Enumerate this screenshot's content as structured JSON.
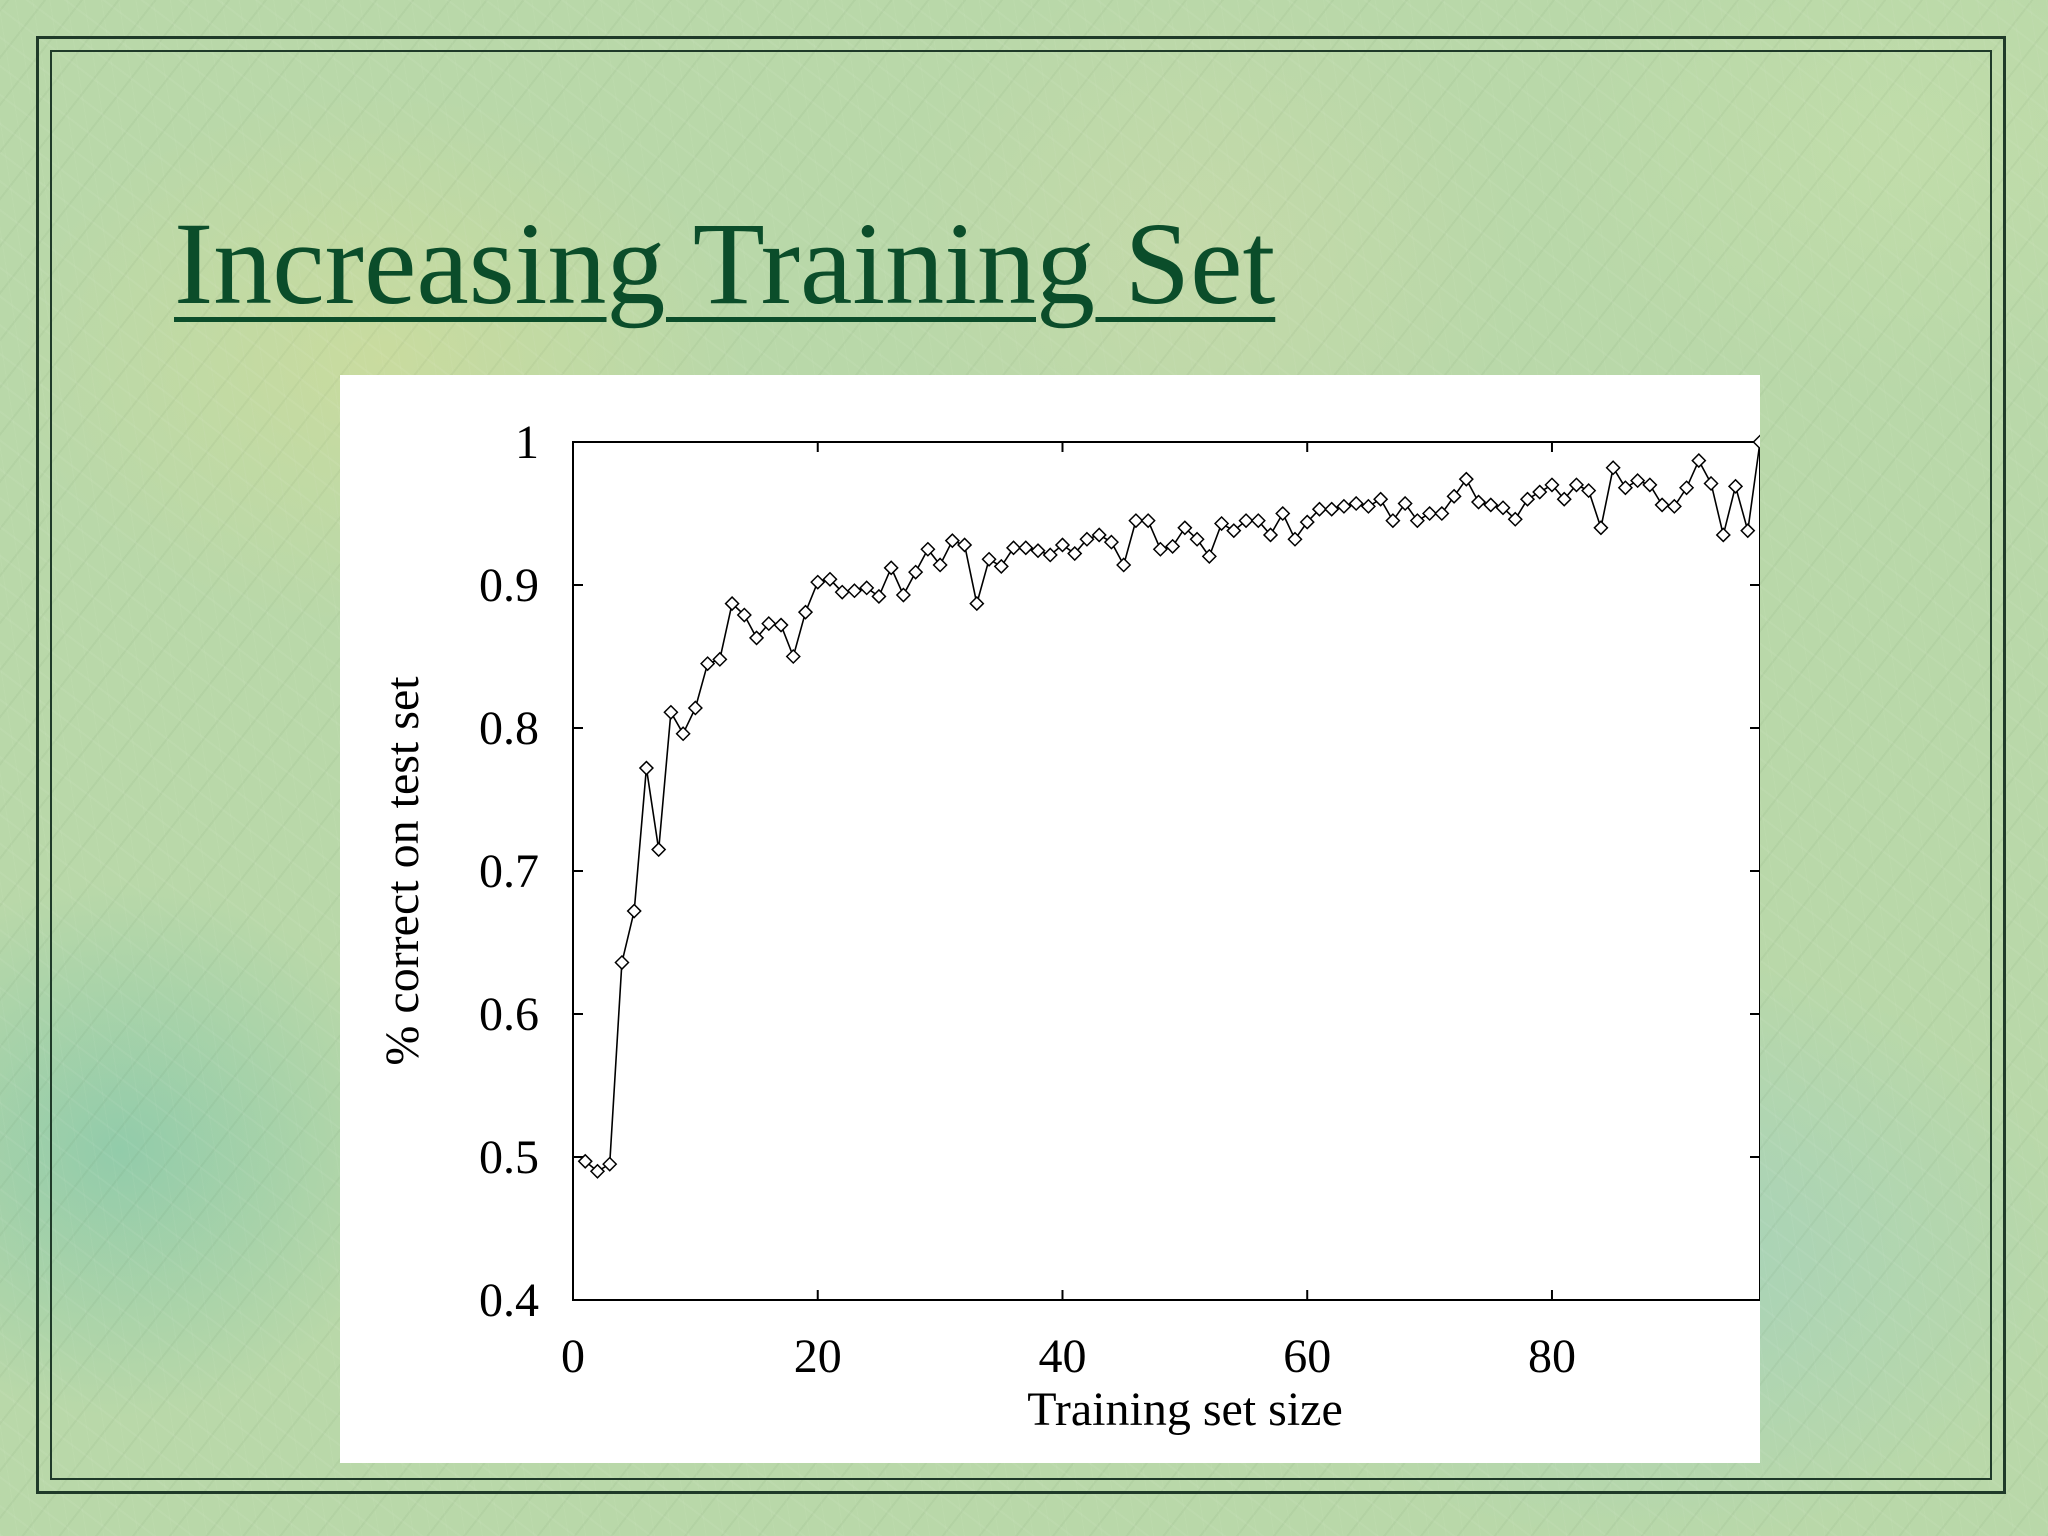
{
  "slide": {
    "title": "Increasing Training Set"
  },
  "chart_data": {
    "type": "line",
    "title": "",
    "xlabel": "Training set size",
    "ylabel": "% correct on test set",
    "xlim": [
      0,
      97
    ],
    "ylim": [
      0.4,
      1.0
    ],
    "xticks": [
      "0",
      "20",
      "40",
      "60",
      "80"
    ],
    "xtick_values": [
      0,
      20,
      40,
      60,
      80
    ],
    "yticks": [
      "0.4",
      "0.5",
      "0.6",
      "0.7",
      "0.8",
      "0.9",
      "1"
    ],
    "ytick_values": [
      0.4,
      0.5,
      0.6,
      0.7,
      0.8,
      0.9,
      1.0
    ],
    "marker": "diamond",
    "grid": false,
    "series": [
      {
        "x": [
          1,
          2,
          3,
          4,
          5,
          6,
          7,
          8,
          9,
          10,
          11,
          12,
          13,
          14,
          15,
          16,
          17,
          18,
          19,
          20,
          21,
          22,
          23,
          24,
          25,
          26,
          27,
          28,
          29,
          30,
          31,
          32,
          33,
          34,
          35,
          36,
          37,
          38,
          39,
          40,
          41,
          42,
          43,
          44,
          45,
          46,
          47,
          48,
          49,
          50,
          51,
          52,
          53,
          54,
          55,
          56,
          57,
          58,
          59,
          60,
          61,
          62,
          63,
          64,
          65,
          66,
          67,
          68,
          69,
          70,
          71,
          72,
          73,
          74,
          75,
          76,
          77,
          78,
          79,
          80,
          81,
          82,
          83,
          84,
          85,
          86,
          87,
          88,
          89,
          90,
          91,
          92,
          93,
          94,
          95,
          96,
          97
        ],
        "values": [
          0.497,
          0.49,
          0.495,
          0.636,
          0.672,
          0.772,
          0.715,
          0.811,
          0.796,
          0.814,
          0.845,
          0.848,
          0.887,
          0.879,
          0.863,
          0.873,
          0.872,
          0.85,
          0.881,
          0.902,
          0.904,
          0.895,
          0.896,
          0.898,
          0.892,
          0.912,
          0.893,
          0.909,
          0.925,
          0.914,
          0.931,
          0.928,
          0.887,
          0.918,
          0.913,
          0.926,
          0.926,
          0.924,
          0.921,
          0.928,
          0.922,
          0.932,
          0.935,
          0.93,
          0.914,
          0.945,
          0.945,
          0.925,
          0.927,
          0.94,
          0.932,
          0.92,
          0.943,
          0.938,
          0.945,
          0.945,
          0.935,
          0.95,
          0.932,
          0.944,
          0.953,
          0.953,
          0.955,
          0.957,
          0.955,
          0.96,
          0.945,
          0.957,
          0.945,
          0.95,
          0.95,
          0.962,
          0.974,
          0.958,
          0.956,
          0.954,
          0.946,
          0.96,
          0.965,
          0.97,
          0.96,
          0.97,
          0.966,
          0.94,
          0.982,
          0.968,
          0.973,
          0.97,
          0.956,
          0.955,
          0.968,
          0.987,
          0.971,
          0.935,
          0.969,
          0.938,
          1.0
        ]
      }
    ]
  }
}
